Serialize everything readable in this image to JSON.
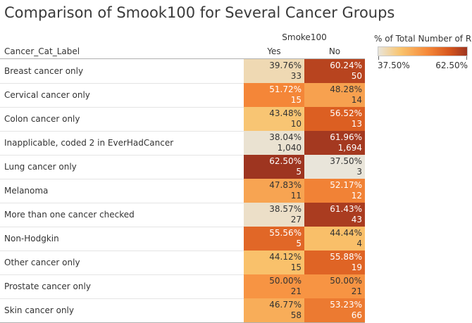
{
  "title": "Comparison of Smook100 for Several Cancer Groups",
  "legend": {
    "title": "% of Total Number of R..",
    "min_label": "37.50%",
    "max_label": "62.50%",
    "min": 37.5,
    "max": 62.5
  },
  "chart_data": {
    "type": "heatmap",
    "title": "Comparison of Smook100 for Several Cancer Groups",
    "row_header": "Cancer_Cat_Label",
    "column_group": "Smoke100",
    "columns": [
      "Yes",
      "No"
    ],
    "rows": [
      {
        "label": "Breast cancer only",
        "yes_pct": "39.76%",
        "yes_count": "33",
        "no_pct": "60.24%",
        "no_count": "50",
        "yes_val": 39.76,
        "no_val": 60.24
      },
      {
        "label": "Cervical cancer only",
        "yes_pct": "51.72%",
        "yes_count": "15",
        "no_pct": "48.28%",
        "no_count": "14",
        "yes_val": 51.72,
        "no_val": 48.28
      },
      {
        "label": "Colon cancer only",
        "yes_pct": "43.48%",
        "yes_count": "10",
        "no_pct": "56.52%",
        "no_count": "13",
        "yes_val": 43.48,
        "no_val": 56.52
      },
      {
        "label": "Inapplicable, coded 2 in EverHadCancer",
        "yes_pct": "38.04%",
        "yes_count": "1,040",
        "no_pct": "61.96%",
        "no_count": "1,694",
        "yes_val": 38.04,
        "no_val": 61.96
      },
      {
        "label": "Lung cancer only",
        "yes_pct": "62.50%",
        "yes_count": "5",
        "no_pct": "37.50%",
        "no_count": "3",
        "yes_val": 62.5,
        "no_val": 37.5
      },
      {
        "label": "Melanoma",
        "yes_pct": "47.83%",
        "yes_count": "11",
        "no_pct": "52.17%",
        "no_count": "12",
        "yes_val": 47.83,
        "no_val": 52.17
      },
      {
        "label": "More than one cancer checked",
        "yes_pct": "38.57%",
        "yes_count": "27",
        "no_pct": "61.43%",
        "no_count": "43",
        "yes_val": 38.57,
        "no_val": 61.43
      },
      {
        "label": "Non-Hodgkin",
        "yes_pct": "55.56%",
        "yes_count": "5",
        "no_pct": "44.44%",
        "no_count": "4",
        "yes_val": 55.56,
        "no_val": 44.44
      },
      {
        "label": "Other cancer only",
        "yes_pct": "44.12%",
        "yes_count": "15",
        "no_pct": "55.88%",
        "no_count": "19",
        "yes_val": 44.12,
        "no_val": 55.88
      },
      {
        "label": "Prostate cancer only",
        "yes_pct": "50.00%",
        "yes_count": "21",
        "no_pct": "50.00%",
        "no_count": "21",
        "yes_val": 50.0,
        "no_val": 50.0
      },
      {
        "label": "Skin cancer only",
        "yes_pct": "46.77%",
        "yes_count": "58",
        "no_pct": "53.23%",
        "no_count": "66",
        "yes_val": 46.77,
        "no_val": 53.23
      }
    ]
  }
}
